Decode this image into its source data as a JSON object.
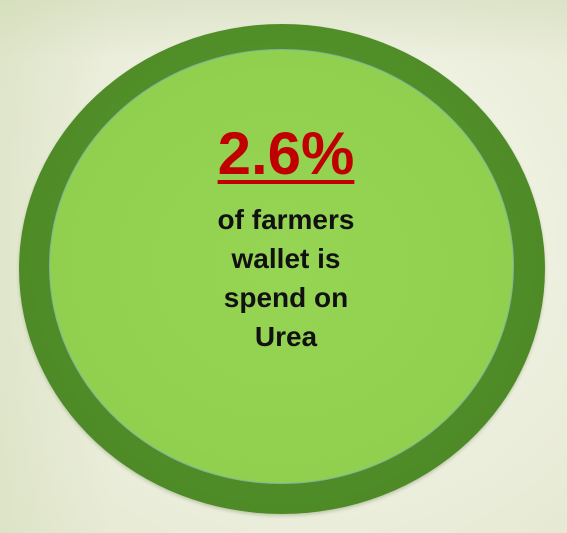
{
  "stat": {
    "value": "2.6%",
    "value_color": "#c00000",
    "caption_lines": [
      "of farmers",
      "wallet is",
      "spend on",
      "Urea"
    ]
  },
  "colors": {
    "outer_ring": "#4e8b27",
    "inner_fill": "#92d050",
    "background": "#eff1e2"
  }
}
